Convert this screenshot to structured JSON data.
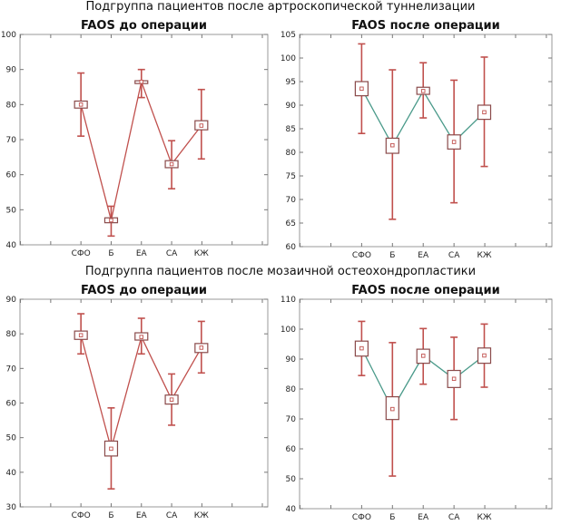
{
  "headings": {
    "top": "Подгруппа пациентов после артроскопической туннелизации",
    "bottom": "Подгруппа пациентов после мозаичной остеохондропластики"
  },
  "chart_data": [
    {
      "type": "box",
      "title": "FAOS до операции",
      "categories": [
        "СФО",
        "Б",
        "ЕА",
        "СА",
        "КЖ"
      ],
      "ylim": [
        40,
        100
      ],
      "yticks": [
        40,
        50,
        60,
        70,
        80,
        90,
        100
      ],
      "mean": [
        80,
        47,
        86.5,
        63,
        74
      ],
      "box_low": [
        79,
        46.3,
        86,
        62,
        72.8
      ],
      "box_high": [
        81,
        47.7,
        86.8,
        64,
        75.4
      ],
      "whisker_low": [
        71,
        42.5,
        82,
        56,
        64.5
      ],
      "whisker_high": [
        89,
        51,
        90,
        69.7,
        84.3
      ],
      "line_color": "#c0504d",
      "box_color": "#8a4a4a"
    },
    {
      "type": "box",
      "title": "FAOS после операции",
      "categories": [
        "СФО",
        "Б",
        "ЕА",
        "СА",
        "КЖ"
      ],
      "ylim": [
        60,
        105
      ],
      "yticks": [
        60,
        65,
        70,
        75,
        80,
        85,
        90,
        95,
        100,
        105
      ],
      "mean": [
        93.5,
        81.5,
        93,
        82.2,
        88.5
      ],
      "box_low": [
        92,
        79.8,
        92.3,
        80.7,
        87
      ],
      "box_high": [
        95,
        83,
        93.8,
        83.7,
        90
      ],
      "whisker_low": [
        84,
        65.8,
        87.3,
        69.3,
        77
      ],
      "whisker_high": [
        103,
        97.5,
        99,
        95.3,
        100.2
      ],
      "line_color": "#4a9a8a",
      "box_color": "#8a4a4a"
    },
    {
      "type": "box",
      "title": "FAOS до операции",
      "categories": [
        "СФО",
        "Б",
        "ЕА",
        "СА",
        "КЖ"
      ],
      "ylim": [
        30,
        90
      ],
      "yticks": [
        30,
        40,
        50,
        60,
        70,
        80,
        90
      ],
      "mean": [
        79.6,
        46.8,
        79.1,
        61,
        76
      ],
      "box_low": [
        78.4,
        44.7,
        78.2,
        59.7,
        74.6
      ],
      "box_high": [
        80.8,
        49,
        80.3,
        62.3,
        77.2
      ],
      "whisker_low": [
        74.2,
        35.2,
        74.2,
        53.6,
        68.7
      ],
      "whisker_high": [
        85.8,
        58.6,
        84.5,
        68.4,
        83.6
      ],
      "line_color": "#c0504d",
      "box_color": "#8a4a4a"
    },
    {
      "type": "box",
      "title": "FAOS после операции",
      "categories": [
        "СФО",
        "Б",
        "ЕА",
        "СА",
        "КЖ"
      ],
      "ylim": [
        40,
        110
      ],
      "yticks": [
        40,
        50,
        60,
        70,
        80,
        90,
        100,
        110
      ],
      "mean": [
        93.6,
        73.3,
        91.1,
        83.4,
        91.2
      ],
      "box_low": [
        91,
        69.8,
        88.6,
        80.5,
        88.6
      ],
      "box_high": [
        96,
        77.4,
        93.3,
        86.2,
        93.7
      ],
      "whisker_low": [
        84.5,
        50.9,
        81.6,
        69.8,
        80.6
      ],
      "whisker_high": [
        102.6,
        95.5,
        100.2,
        97.3,
        101.7
      ],
      "line_color": "#4a9a8a",
      "box_color": "#8a4a4a"
    }
  ]
}
